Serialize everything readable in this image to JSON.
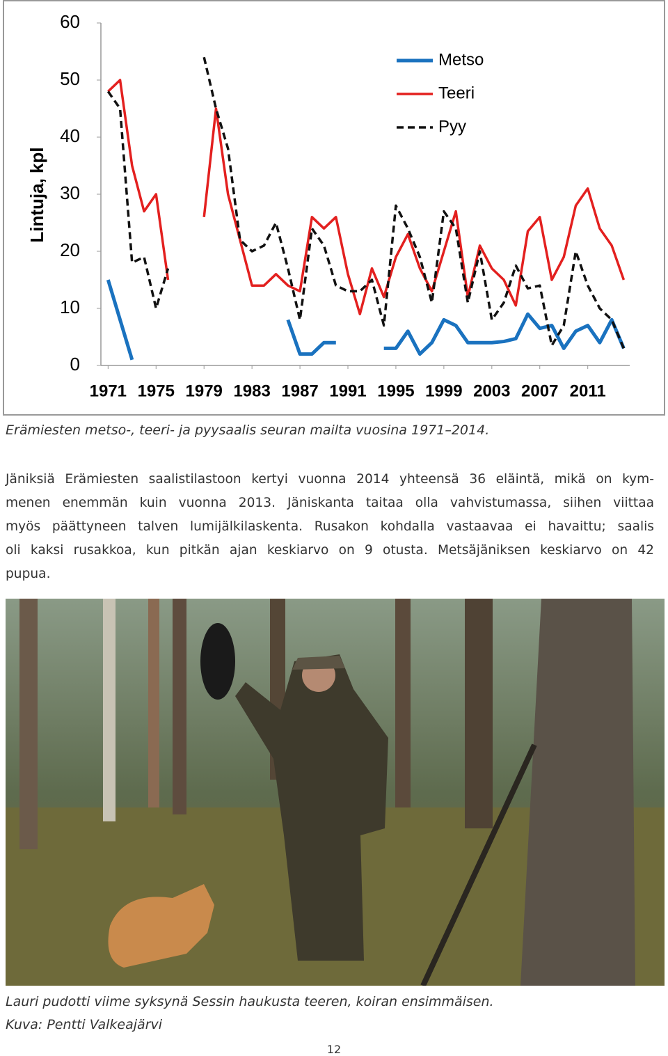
{
  "chart_data": {
    "type": "line",
    "y_label": "Lintuja, kpl",
    "x": [
      1971,
      1972,
      1973,
      1974,
      1975,
      1976,
      1977,
      1978,
      1979,
      1980,
      1981,
      1982,
      1983,
      1984,
      1985,
      1986,
      1987,
      1988,
      1989,
      1990,
      1991,
      1992,
      1993,
      1994,
      1995,
      1996,
      1997,
      1998,
      1999,
      2000,
      2001,
      2002,
      2003,
      2004,
      2005,
      2006,
      2007,
      2008,
      2009,
      2010,
      2011,
      2012,
      2013,
      2014
    ],
    "series": [
      {
        "name": "Metso",
        "color": "#1a72bf",
        "dash": false,
        "values": [
          15,
          8,
          1,
          null,
          null,
          null,
          null,
          null,
          null,
          null,
          null,
          null,
          null,
          null,
          null,
          8,
          2,
          2,
          4,
          4,
          null,
          null,
          null,
          3,
          3,
          6,
          2,
          4,
          8,
          7,
          4,
          4,
          4,
          4.2,
          4.7,
          9,
          6.5,
          7,
          3,
          6,
          7,
          4,
          8,
          3
        ]
      },
      {
        "name": "Teeri",
        "color": "#e3201f",
        "dash": false,
        "values": [
          48,
          50,
          35,
          27,
          30,
          15,
          null,
          null,
          26,
          45,
          30,
          22,
          14,
          14,
          16,
          14,
          13,
          26,
          24,
          26,
          16,
          9,
          17,
          12,
          19,
          23,
          17,
          13,
          20,
          27,
          12,
          21,
          17,
          15,
          10.5,
          23.5,
          26,
          15,
          19,
          28,
          31,
          24,
          21,
          15
        ]
      },
      {
        "name": "Pyy",
        "color": "#111111",
        "dash": true,
        "values": [
          48,
          45,
          18,
          19,
          10,
          17,
          null,
          null,
          54,
          45,
          38,
          22,
          20,
          21,
          25,
          17,
          8,
          24,
          21,
          14,
          13,
          13,
          15,
          7,
          28,
          24,
          19,
          11,
          27,
          24,
          11,
          20,
          8,
          11,
          17.5,
          13.5,
          14,
          3.5,
          7,
          20,
          14,
          10,
          8,
          3
        ]
      }
    ],
    "xlim": [
      1970.4,
      2014.5
    ],
    "xticks": [
      1971,
      1975,
      1979,
      1983,
      1987,
      1991,
      1995,
      1999,
      2003,
      2007,
      2011
    ],
    "ylim": [
      0,
      60
    ],
    "yticks": [
      0,
      10,
      20,
      30,
      40,
      50,
      60
    ],
    "grid": false,
    "legend": "top-right"
  },
  "chart_caption": "Erämiesten metso-, teeri- ja pyysaalis seuran mailta vuosina 1971–2014.",
  "paragraph": [
    "Jäniksiä Erämiesten saalistilastoon kertyi vuonna 2014 yhteensä 36 eläintä, mikä on kym-",
    "menen enemmän kuin vuonna 2013. Jäniskanta taitaa olla vahvistumassa, siihen viittaa",
    "myös päättyneen talven lumijälkilaskenta. Rusakon kohdalla vastaavaa ei havaittu; saalis",
    "oli kaksi rusakkoa, kun pitkän ajan keskiarvo on 9 otusta. Metsäjäniksen keskiarvo on 42",
    "pupua."
  ],
  "photo_caption": [
    "Lauri pudotti viime syksynä Sessin haukusta teeren, koiran ensimmäisen.",
    "Kuva: Pentti Valkeajärvi"
  ],
  "page_number": "12"
}
